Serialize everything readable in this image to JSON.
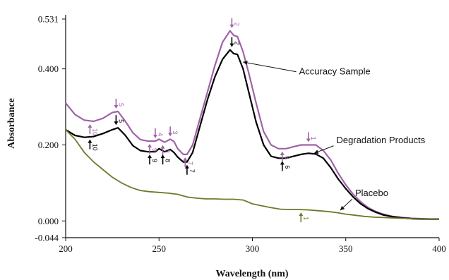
{
  "chart_data": {
    "type": "line",
    "title": "",
    "xlabel": "Wavelength (nm)",
    "ylabel": "Absorbance",
    "xlim": [
      200,
      400
    ],
    "ylim": [
      -0.044,
      0.531
    ],
    "x_ticks": [
      200,
      250,
      300,
      350,
      400
    ],
    "x_tick_labels": [
      "200",
      "250",
      "300",
      "350",
      "400"
    ],
    "y_ticks": [
      -0.044,
      0.0,
      0.2,
      0.4,
      0.531
    ],
    "y_tick_labels": [
      "-0.044",
      "0.000",
      "0.200",
      "0.400",
      "0.531"
    ],
    "grid": false,
    "series": [
      {
        "key": "degradation",
        "color": "#a062a8",
        "x": [
          200,
          205,
          210,
          215,
          220,
          225,
          228,
          232,
          236,
          240,
          244,
          248,
          250,
          253,
          256,
          258,
          260,
          263,
          265,
          268,
          272,
          276,
          280,
          284,
          288,
          290,
          292,
          295,
          298,
          302,
          306,
          310,
          314,
          318,
          322,
          326,
          330,
          334,
          338,
          342,
          346,
          350,
          354,
          358,
          362,
          366,
          370,
          375,
          380,
          385,
          390,
          395,
          400
        ],
        "y": [
          0.31,
          0.28,
          0.265,
          0.262,
          0.27,
          0.285,
          0.288,
          0.262,
          0.232,
          0.214,
          0.21,
          0.21,
          0.215,
          0.207,
          0.215,
          0.209,
          0.19,
          0.175,
          0.175,
          0.2,
          0.27,
          0.34,
          0.41,
          0.47,
          0.5,
          0.488,
          0.485,
          0.445,
          0.39,
          0.31,
          0.235,
          0.2,
          0.19,
          0.19,
          0.195,
          0.2,
          0.2,
          0.2,
          0.185,
          0.16,
          0.125,
          0.095,
          0.07,
          0.05,
          0.035,
          0.025,
          0.018,
          0.012,
          0.009,
          0.007,
          0.006,
          0.005,
          0.005
        ]
      },
      {
        "key": "accuracy",
        "color": "#000000",
        "x": [
          200,
          205,
          210,
          215,
          220,
          225,
          228,
          232,
          236,
          240,
          244,
          248,
          250,
          253,
          256,
          258,
          260,
          263,
          265,
          268,
          272,
          276,
          280,
          284,
          288,
          290,
          292,
          295,
          298,
          302,
          306,
          310,
          314,
          318,
          322,
          326,
          330,
          334,
          338,
          342,
          346,
          350,
          354,
          358,
          362,
          366,
          370,
          375,
          380,
          385,
          390,
          395,
          400
        ],
        "y": [
          0.24,
          0.225,
          0.22,
          0.222,
          0.23,
          0.24,
          0.245,
          0.225,
          0.198,
          0.185,
          0.182,
          0.182,
          0.19,
          0.182,
          0.188,
          0.18,
          0.168,
          0.155,
          0.155,
          0.18,
          0.25,
          0.32,
          0.38,
          0.425,
          0.45,
          0.44,
          0.438,
          0.4,
          0.34,
          0.26,
          0.2,
          0.17,
          0.165,
          0.165,
          0.17,
          0.175,
          0.178,
          0.176,
          0.165,
          0.14,
          0.11,
          0.085,
          0.063,
          0.045,
          0.032,
          0.023,
          0.016,
          0.011,
          0.008,
          0.006,
          0.005,
          0.005,
          0.005
        ]
      },
      {
        "key": "placebo",
        "color": "#6b7a2a",
        "x": [
          200,
          205,
          210,
          215,
          220,
          225,
          230,
          235,
          240,
          245,
          250,
          255,
          260,
          265,
          270,
          275,
          280,
          285,
          290,
          295,
          300,
          305,
          310,
          315,
          320,
          325,
          330,
          335,
          340,
          345,
          350,
          355,
          360,
          365,
          370,
          375,
          380,
          385,
          390,
          395,
          400
        ],
        "y": [
          0.24,
          0.215,
          0.18,
          0.155,
          0.135,
          0.115,
          0.1,
          0.088,
          0.08,
          0.077,
          0.075,
          0.073,
          0.07,
          0.063,
          0.06,
          0.058,
          0.058,
          0.057,
          0.057,
          0.055,
          0.045,
          0.04,
          0.035,
          0.031,
          0.03,
          0.03,
          0.029,
          0.027,
          0.025,
          0.022,
          0.018,
          0.015,
          0.012,
          0.01,
          0.009,
          0.008,
          0.007,
          0.006,
          0.005,
          0.005,
          0.005
        ]
      }
    ],
    "annotations": [
      {
        "text": "Accuracy Sample",
        "text_x": 325,
        "text_y": 0.385,
        "arrow_x": 295,
        "arrow_y": 0.418
      },
      {
        "text": "Degradation Products",
        "text_x": 345,
        "text_y": 0.205,
        "arrow_x": 333,
        "arrow_y": 0.178
      },
      {
        "text": "Placebo",
        "text_x": 355,
        "text_y": 0.065,
        "arrow_x": 347,
        "arrow_y": 0.028
      }
    ],
    "peak_markers": [
      {
        "label": "1",
        "series": "degradation",
        "x": 330,
        "y": 0.2,
        "dir": "down"
      },
      {
        "label": "2",
        "series": "degradation",
        "x": 289,
        "y": 0.5,
        "dir": "down"
      },
      {
        "label": "3",
        "series": "degradation",
        "x": 256,
        "y": 0.215,
        "dir": "down"
      },
      {
        "label": "4",
        "series": "degradation",
        "x": 248,
        "y": 0.21,
        "dir": "down"
      },
      {
        "label": "5",
        "series": "degradation",
        "x": 227,
        "y": 0.288,
        "dir": "down"
      },
      {
        "label": "6",
        "series": "degradation",
        "x": 316,
        "y": 0.19,
        "dir": "up"
      },
      {
        "label": "7",
        "series": "degradation",
        "x": 264,
        "y": 0.175,
        "dir": "up"
      },
      {
        "label": "8",
        "series": "degradation",
        "x": 252,
        "y": 0.207,
        "dir": "up"
      },
      {
        "label": "9",
        "series": "degradation",
        "x": 245,
        "y": 0.21,
        "dir": "up"
      },
      {
        "label": "10",
        "series": "degradation",
        "x": 213,
        "y": 0.262,
        "dir": "up"
      },
      {
        "label": "2",
        "series": "accuracy",
        "x": 289,
        "y": 0.45,
        "dir": "down"
      },
      {
        "label": "5",
        "series": "accuracy",
        "x": 227,
        "y": 0.245,
        "dir": "down"
      },
      {
        "label": "6",
        "series": "accuracy",
        "x": 316,
        "y": 0.165,
        "dir": "up"
      },
      {
        "label": "7",
        "series": "accuracy",
        "x": 265,
        "y": 0.155,
        "dir": "up"
      },
      {
        "label": "8",
        "series": "accuracy",
        "x": 252,
        "y": 0.182,
        "dir": "up"
      },
      {
        "label": "9",
        "series": "accuracy",
        "x": 245,
        "y": 0.182,
        "dir": "up"
      },
      {
        "label": "10",
        "series": "accuracy",
        "x": 213,
        "y": 0.222,
        "dir": "up"
      },
      {
        "label": "1",
        "series": "placebo",
        "x": 326,
        "y": 0.03,
        "dir": "up"
      }
    ]
  }
}
